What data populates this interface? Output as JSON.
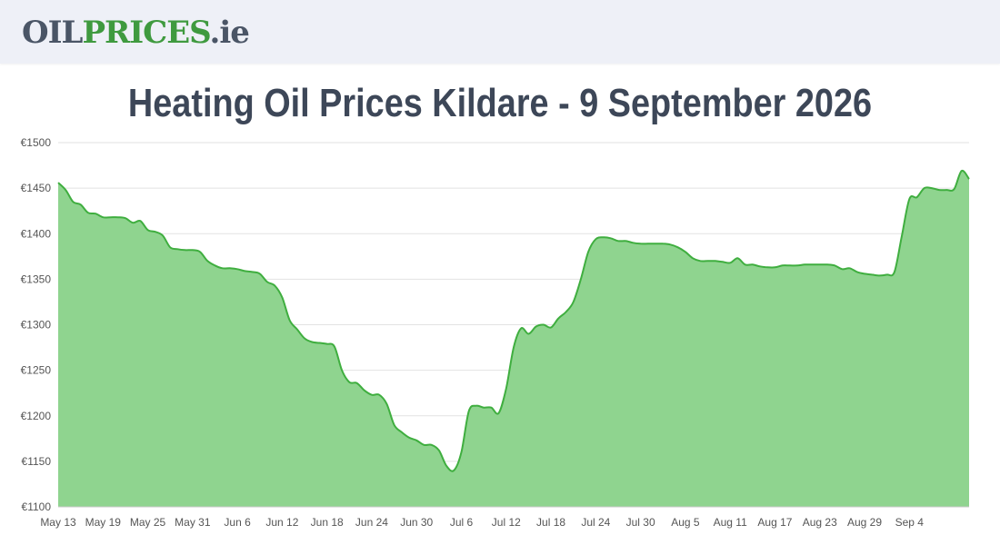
{
  "header": {
    "logo": {
      "part1": "OIL",
      "part2": "PRICES",
      "part3": ".ie"
    }
  },
  "page": {
    "title": "Heating Oil Prices Kildare - 9 September 2026"
  },
  "colors": {
    "line": "#3fae3f",
    "fill": "#8fd48f",
    "grid": "#e2e2e2",
    "axis": "#c8c8c8"
  },
  "chart_data": {
    "type": "area",
    "title": "",
    "xlabel": "",
    "ylabel": "",
    "ylim": [
      1100,
      1500
    ],
    "y_ticks": [
      1100,
      1150,
      1200,
      1250,
      1300,
      1350,
      1400,
      1450,
      1500
    ],
    "y_tick_labels": [
      "€1100",
      "€1150",
      "€1200",
      "€1250",
      "€1300",
      "€1350",
      "€1400",
      "€1450",
      "€1500"
    ],
    "x_ticks": [
      "2026-05-13",
      "2026-05-19",
      "2026-05-25",
      "2026-05-31",
      "2026-06-06",
      "2026-06-12",
      "2026-06-18",
      "2026-06-24",
      "2026-06-30",
      "2026-07-06",
      "2026-07-12",
      "2026-07-18",
      "2026-07-24",
      "2026-07-30",
      "2026-08-05",
      "2026-08-11",
      "2026-08-17",
      "2026-08-23",
      "2026-08-29",
      "2026-09-04"
    ],
    "x_tick_labels": [
      "May 13",
      "May 19",
      "May 25",
      "May 31",
      "Jun 6",
      "Jun 12",
      "Jun 18",
      "Jun 24",
      "Jun 30",
      "Jul 6",
      "Jul 12",
      "Jul 18",
      "Jul 24",
      "Jul 30",
      "Aug 5",
      "Aug 11",
      "Aug 17",
      "Aug 23",
      "Aug 29",
      "Sep 4"
    ],
    "grid": true,
    "legend": "none",
    "series": [
      {
        "points": [
          [
            "2026-05-13",
            1456
          ],
          [
            "2026-05-14",
            1448
          ],
          [
            "2026-05-15",
            1435
          ],
          [
            "2026-05-16",
            1432
          ],
          [
            "2026-05-17",
            1423
          ],
          [
            "2026-05-18",
            1422
          ],
          [
            "2026-05-19",
            1418
          ],
          [
            "2026-05-20",
            1418
          ],
          [
            "2026-05-21",
            1418
          ],
          [
            "2026-05-22",
            1417
          ],
          [
            "2026-05-23",
            1412
          ],
          [
            "2026-05-24",
            1414
          ],
          [
            "2026-05-25",
            1404
          ],
          [
            "2026-05-26",
            1402
          ],
          [
            "2026-05-27",
            1398
          ],
          [
            "2026-05-28",
            1385
          ],
          [
            "2026-05-29",
            1383
          ],
          [
            "2026-05-30",
            1382
          ],
          [
            "2026-05-31",
            1382
          ],
          [
            "2026-06-01",
            1380
          ],
          [
            "2026-06-02",
            1370
          ],
          [
            "2026-06-03",
            1365
          ],
          [
            "2026-06-04",
            1362
          ],
          [
            "2026-06-05",
            1362
          ],
          [
            "2026-06-06",
            1361
          ],
          [
            "2026-06-07",
            1359
          ],
          [
            "2026-06-08",
            1358
          ],
          [
            "2026-06-09",
            1356
          ],
          [
            "2026-06-10",
            1347
          ],
          [
            "2026-06-11",
            1343
          ],
          [
            "2026-06-12",
            1330
          ],
          [
            "2026-06-13",
            1305
          ],
          [
            "2026-06-14",
            1295
          ],
          [
            "2026-06-15",
            1285
          ],
          [
            "2026-06-16",
            1281
          ],
          [
            "2026-06-17",
            1280
          ],
          [
            "2026-06-18",
            1279
          ],
          [
            "2026-06-19",
            1276
          ],
          [
            "2026-06-20",
            1250
          ],
          [
            "2026-06-21",
            1237
          ],
          [
            "2026-06-22",
            1236
          ],
          [
            "2026-06-23",
            1228
          ],
          [
            "2026-06-24",
            1223
          ],
          [
            "2026-06-25",
            1223
          ],
          [
            "2026-06-26",
            1213
          ],
          [
            "2026-06-27",
            1190
          ],
          [
            "2026-06-28",
            1182
          ],
          [
            "2026-06-29",
            1176
          ],
          [
            "2026-06-30",
            1173
          ],
          [
            "2026-07-01",
            1168
          ],
          [
            "2026-07-02",
            1168
          ],
          [
            "2026-07-03",
            1162
          ],
          [
            "2026-07-04",
            1145
          ],
          [
            "2026-07-05",
            1140
          ],
          [
            "2026-07-06",
            1160
          ],
          [
            "2026-07-07",
            1205
          ],
          [
            "2026-07-08",
            1211
          ],
          [
            "2026-07-09",
            1209
          ],
          [
            "2026-07-10",
            1209
          ],
          [
            "2026-07-11",
            1203
          ],
          [
            "2026-07-12",
            1230
          ],
          [
            "2026-07-13",
            1275
          ],
          [
            "2026-07-14",
            1296
          ],
          [
            "2026-07-15",
            1290
          ],
          [
            "2026-07-16",
            1298
          ],
          [
            "2026-07-17",
            1300
          ],
          [
            "2026-07-18",
            1297
          ],
          [
            "2026-07-19",
            1307
          ],
          [
            "2026-07-20",
            1314
          ],
          [
            "2026-07-21",
            1325
          ],
          [
            "2026-07-22",
            1350
          ],
          [
            "2026-07-23",
            1380
          ],
          [
            "2026-07-24",
            1394
          ],
          [
            "2026-07-25",
            1396
          ],
          [
            "2026-07-26",
            1395
          ],
          [
            "2026-07-27",
            1392
          ],
          [
            "2026-07-28",
            1392
          ],
          [
            "2026-07-29",
            1390
          ],
          [
            "2026-07-30",
            1389
          ],
          [
            "2026-07-31",
            1389
          ],
          [
            "2026-08-01",
            1389
          ],
          [
            "2026-08-02",
            1389
          ],
          [
            "2026-08-03",
            1388
          ],
          [
            "2026-08-04",
            1385
          ],
          [
            "2026-08-05",
            1380
          ],
          [
            "2026-08-06",
            1373
          ],
          [
            "2026-08-07",
            1370
          ],
          [
            "2026-08-08",
            1370
          ],
          [
            "2026-08-09",
            1370
          ],
          [
            "2026-08-10",
            1369
          ],
          [
            "2026-08-11",
            1368
          ],
          [
            "2026-08-12",
            1373
          ],
          [
            "2026-08-13",
            1366
          ],
          [
            "2026-08-14",
            1366
          ],
          [
            "2026-08-15",
            1364
          ],
          [
            "2026-08-16",
            1363
          ],
          [
            "2026-08-17",
            1363
          ],
          [
            "2026-08-18",
            1365
          ],
          [
            "2026-08-19",
            1365
          ],
          [
            "2026-08-20",
            1365
          ],
          [
            "2026-08-21",
            1366
          ],
          [
            "2026-08-22",
            1366
          ],
          [
            "2026-08-23",
            1366
          ],
          [
            "2026-08-24",
            1366
          ],
          [
            "2026-08-25",
            1365
          ],
          [
            "2026-08-26",
            1361
          ],
          [
            "2026-08-27",
            1362
          ],
          [
            "2026-08-28",
            1358
          ],
          [
            "2026-08-29",
            1356
          ],
          [
            "2026-08-30",
            1355
          ],
          [
            "2026-08-31",
            1354
          ],
          [
            "2026-09-01",
            1355
          ],
          [
            "2026-09-02",
            1358
          ],
          [
            "2026-09-03",
            1398
          ],
          [
            "2026-09-04",
            1438
          ],
          [
            "2026-09-05",
            1440
          ],
          [
            "2026-09-06",
            1450
          ],
          [
            "2026-09-07",
            1450
          ],
          [
            "2026-09-08",
            1448
          ],
          [
            "2026-09-09",
            1448
          ],
          [
            "2026-09-10",
            1449
          ],
          [
            "2026-09-11",
            1469
          ],
          [
            "2026-09-12",
            1460
          ]
        ]
      }
    ]
  }
}
